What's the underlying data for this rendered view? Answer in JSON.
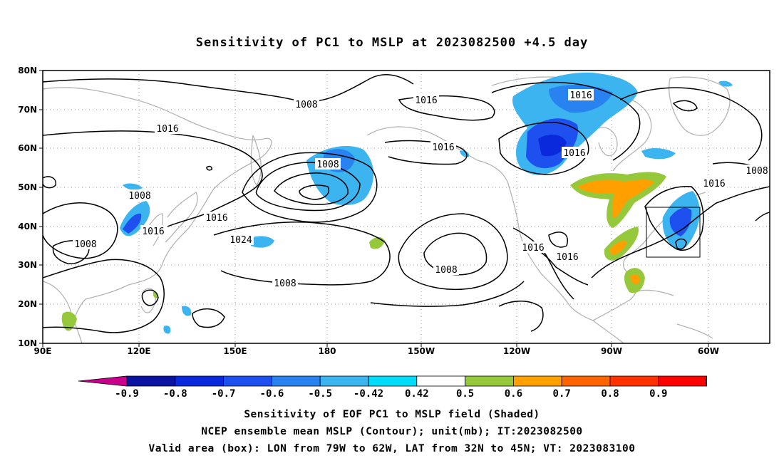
{
  "title": "Sensitivity of PC1 to MSLP at 2023082500 +4.5 day",
  "map": {
    "lat_labels": [
      "80N",
      "70N",
      "60N",
      "50N",
      "40N",
      "30N",
      "20N",
      "10N"
    ],
    "lon_labels": [
      "90E",
      "120E",
      "150E",
      "180",
      "150W",
      "120W",
      "90W",
      "60W"
    ],
    "lat_range": [
      10,
      80
    ],
    "lon_range": [
      "90E",
      "45W"
    ],
    "gridlines": "dotted",
    "coastline_color": "#b4b4b4",
    "contour_color": "#000000",
    "contour_labels": [
      "1008",
      "1016",
      "1016",
      "1016",
      "1008",
      "1016",
      "1016",
      "1008",
      "1016",
      "1008",
      "1016",
      "1016",
      "1008",
      "1024",
      "1016",
      "1008",
      "1016",
      "1008"
    ],
    "valid_box": {
      "lon": [
        "79W",
        "62W"
      ],
      "lat": [
        "32N",
        "45N"
      ]
    }
  },
  "colorbar": {
    "labels": [
      "-0.9",
      "-0.8",
      "-0.7",
      "-0.6",
      "-0.5",
      "-0.42",
      "0.42",
      "0.5",
      "0.6",
      "0.7",
      "0.8",
      "0.9"
    ],
    "colors": [
      "#c8008c",
      "#0a14a0",
      "#0a28dc",
      "#1e50f0",
      "#2882f0",
      "#3cb4f0",
      "#00dcfa",
      "#ffffff",
      "#96c83c",
      "#ffa000",
      "#ff6400",
      "#ff3200",
      "#ff0000",
      "#f0a0c8"
    ]
  },
  "captions": [
    "Sensitivity of EOF PC1 to MSLP field (Shaded)",
    "NCEP ensemble mean MSLP (Contour); unit(mb); IT:2023082500",
    "Valid area (box): LON from 79W to 62W, LAT from 32N to 45N; VT: 2023083100"
  ]
}
